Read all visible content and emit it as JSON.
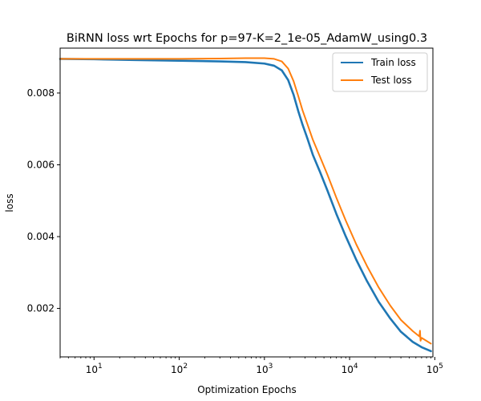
{
  "chart_data": {
    "type": "line",
    "title": "BiRNN loss wrt Epochs for p=97-K=2_1e-05_AdamW_using0.3",
    "xlabel": "Optimization Epochs",
    "ylabel": "loss",
    "xscale": "log",
    "xlim": [
      4,
      95000
    ],
    "ylim": [
      0.00065,
      0.00925
    ],
    "xticks": [
      {
        "value": 10,
        "base": "10",
        "exp": "1"
      },
      {
        "value": 100,
        "base": "10",
        "exp": "2"
      },
      {
        "value": 1000,
        "base": "10",
        "exp": "3"
      },
      {
        "value": 10000,
        "base": "10",
        "exp": "4"
      },
      {
        "value": 100000,
        "base": "10",
        "exp": "5"
      }
    ],
    "yticks": [
      {
        "value": 0.002,
        "label": "0.002"
      },
      {
        "value": 0.004,
        "label": "0.004"
      },
      {
        "value": 0.006,
        "label": "0.006"
      },
      {
        "value": 0.008,
        "label": "0.008"
      }
    ],
    "grid": false,
    "legend": {
      "position": "top-right"
    },
    "series": [
      {
        "name": "Train loss",
        "color": "#1f77b4",
        "x": [
          4,
          10,
          30,
          100,
          300,
          600,
          1000,
          1300,
          1600,
          1900,
          2200,
          2500,
          2800,
          3200,
          3700,
          4500,
          5500,
          7000,
          9000,
          12000,
          16000,
          22000,
          30000,
          40000,
          55000,
          70000,
          90000
        ],
        "y": [
          0.00895,
          0.00894,
          0.00892,
          0.0089,
          0.00888,
          0.00886,
          0.00882,
          0.00876,
          0.00863,
          0.00836,
          0.00795,
          0.00749,
          0.00712,
          0.00673,
          0.00628,
          0.0058,
          0.00528,
          0.00463,
          0.00401,
          0.00335,
          0.00276,
          0.00218,
          0.00172,
          0.00135,
          0.00107,
          0.00092,
          0.00081
        ]
      },
      {
        "name": "Test loss",
        "color": "#ff7f0e",
        "x": [
          4,
          10,
          30,
          100,
          300,
          600,
          1000,
          1300,
          1600,
          1900,
          2200,
          2500,
          2800,
          3200,
          3700,
          4500,
          5500,
          7000,
          9000,
          12000,
          16000,
          22000,
          30000,
          40000,
          55000,
          66000,
          67000,
          68000,
          70000,
          90000
        ],
        "y": [
          0.00895,
          0.00895,
          0.00895,
          0.00895,
          0.00896,
          0.00897,
          0.00897,
          0.00895,
          0.00888,
          0.00868,
          0.00833,
          0.00791,
          0.00752,
          0.00713,
          0.0067,
          0.00622,
          0.00572,
          0.00508,
          0.00445,
          0.00378,
          0.00318,
          0.00258,
          0.00208,
          0.00168,
          0.00137,
          0.00122,
          0.00138,
          0.0011,
          0.00118,
          0.00102
        ]
      }
    ]
  }
}
